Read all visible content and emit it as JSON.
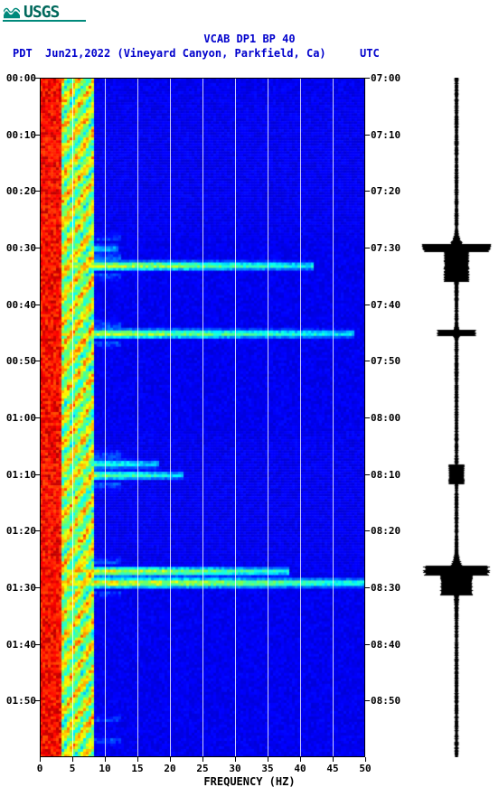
{
  "logo": {
    "text": "USGS",
    "color": "#00695c",
    "underline_color": "#00897b"
  },
  "title": "VCAB DP1 BP 40",
  "subtitle": {
    "tz_left": "PDT",
    "date": "Jun21,2022 (Vineyard Canyon, Parkfield, Ca)",
    "tz_right": "UTC"
  },
  "axes": {
    "xlabel": "FREQUENCY (HZ)",
    "xlim": [
      0,
      50
    ],
    "xticks": [
      0,
      5,
      10,
      15,
      20,
      25,
      30,
      35,
      40,
      45,
      50
    ],
    "left_ticks": [
      "00:00",
      "00:10",
      "00:20",
      "00:30",
      "00:40",
      "00:50",
      "01:00",
      "01:10",
      "01:20",
      "01:30",
      "01:40",
      "01:50"
    ],
    "right_ticks": [
      "07:00",
      "07:10",
      "07:20",
      "07:30",
      "07:40",
      "07:50",
      "08:00",
      "08:10",
      "08:20",
      "08:30",
      "08:40",
      "08:50"
    ],
    "tick_fontsize": 11,
    "label_fontsize": 12,
    "title_fontsize": 12,
    "grid_color": "#ffffff",
    "border_color": "#000000"
  },
  "colormap": {
    "name": "jet",
    "stops": [
      [
        0.0,
        "#000088"
      ],
      [
        0.12,
        "#0000ff"
      ],
      [
        0.35,
        "#00ffff"
      ],
      [
        0.55,
        "#88ff44"
      ],
      [
        0.66,
        "#ffff00"
      ],
      [
        0.8,
        "#ff8800"
      ],
      [
        0.92,
        "#ff0000"
      ],
      [
        1.0,
        "#880000"
      ]
    ]
  },
  "spectrogram": {
    "type": "spectrogram",
    "base_color": "#0022cc",
    "low_freq_band": {
      "freq_max": 3,
      "color": "#aa0000",
      "comment": "persistent high energy 0-3 Hz"
    },
    "mid_freq_band": {
      "freq_range": [
        3,
        8
      ],
      "dominant_colors": [
        "#ffcc00",
        "#ff6600",
        "#00ddcc",
        "#99ff33"
      ]
    },
    "events": [
      {
        "time_pdt": "00:30",
        "freq_extent": 12,
        "intensity": 0.7,
        "colors": [
          "#ff4400",
          "#ffdd00",
          "#44ffcc"
        ]
      },
      {
        "time_pdt": "00:33",
        "freq_extent": 42,
        "intensity": 0.9,
        "colors": [
          "#cc0000",
          "#ff8800",
          "#ffee00",
          "#55ffaa",
          "#00ccff"
        ]
      },
      {
        "time_pdt": "00:45",
        "freq_extent": 48,
        "intensity": 0.85,
        "colors": [
          "#bb0000",
          "#ff9900",
          "#aaff55",
          "#00ddee"
        ]
      },
      {
        "time_pdt": "01:08",
        "freq_extent": 18,
        "intensity": 0.75,
        "colors": [
          "#dd2200",
          "#ffcc00",
          "#66ffbb"
        ]
      },
      {
        "time_pdt": "01:10",
        "freq_extent": 22,
        "intensity": 0.8,
        "colors": [
          "#cc1100",
          "#ffbb00",
          "#88ff66"
        ]
      },
      {
        "time_pdt": "01:27",
        "freq_extent": 38,
        "intensity": 0.95,
        "colors": [
          "#990000",
          "#ee3300",
          "#ffdd00",
          "#00ffcc",
          "#0099ff"
        ]
      },
      {
        "time_pdt": "01:29",
        "freq_extent": 50,
        "intensity": 1.0,
        "colors": [
          "#880000",
          "#dd0000",
          "#ff9900",
          "#ccff44",
          "#00eeff"
        ]
      },
      {
        "time_pdt": "01:55",
        "freq_extent": 8,
        "intensity": 0.6,
        "colors": [
          "#bb1100",
          "#ffaa00"
        ]
      }
    ]
  },
  "seismogram": {
    "type": "waveform",
    "color": "#000000",
    "baseline_amplitude": 0.06,
    "spikes": [
      {
        "time_pdt": "00:30",
        "amplitude": 0.95,
        "duration": 0.012
      },
      {
        "time_pdt": "00:33",
        "amplitude": 0.35,
        "duration": 0.05
      },
      {
        "time_pdt": "00:45",
        "amplitude": 0.55,
        "duration": 0.008
      },
      {
        "time_pdt": "01:10",
        "amplitude": 0.22,
        "duration": 0.03
      },
      {
        "time_pdt": "01:27",
        "amplitude": 0.92,
        "duration": 0.015
      },
      {
        "time_pdt": "01:29",
        "amplitude": 0.45,
        "duration": 0.04
      }
    ]
  },
  "background_color": "#ffffff"
}
